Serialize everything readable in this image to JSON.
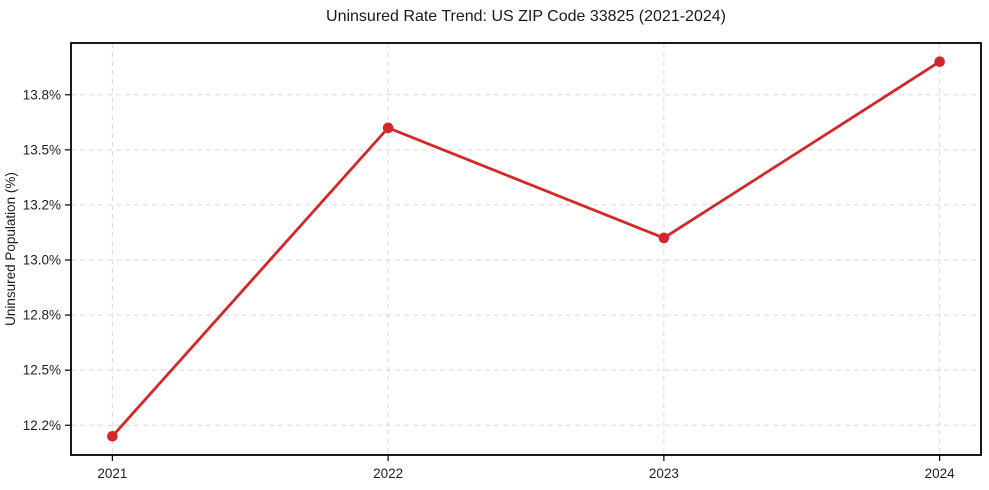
{
  "chart_data": {
    "type": "line",
    "title": "Uninsured Rate Trend: US ZIP Code 33825 (2021-2024)",
    "xlabel": "",
    "ylabel": "Uninsured Population (%)",
    "x": [
      2021,
      2022,
      2023,
      2024
    ],
    "x_tick_labels": [
      "2021",
      "2022",
      "2023",
      "2024"
    ],
    "series": [
      {
        "name": "Uninsured population percent",
        "values": [
          12.2,
          13.6,
          13.1,
          13.9
        ],
        "color": "#d62728",
        "marker": "circle",
        "line_width": 2.8,
        "marker_radius": 5.3
      }
    ],
    "y_ticks": [
      {
        "value": 12.25,
        "label": "12.2%"
      },
      {
        "value": 12.5,
        "label": "12.5%"
      },
      {
        "value": 12.75,
        "label": "12.8%"
      },
      {
        "value": 13.0,
        "label": "13.0%"
      },
      {
        "value": 13.25,
        "label": "13.2%"
      },
      {
        "value": 13.5,
        "label": "13.5%"
      },
      {
        "value": 13.75,
        "label": "13.8%"
      }
    ],
    "xlim": [
      2020.85,
      2024.15
    ],
    "ylim": [
      12.115,
      13.985
    ],
    "grid": "dashed",
    "grid_color": "#d8d8d8",
    "axis_color": "#000000",
    "tick_color": "#000000",
    "tick_label_color": "#1f1f1f",
    "background_color": "#ffffff",
    "legend": "none"
  }
}
